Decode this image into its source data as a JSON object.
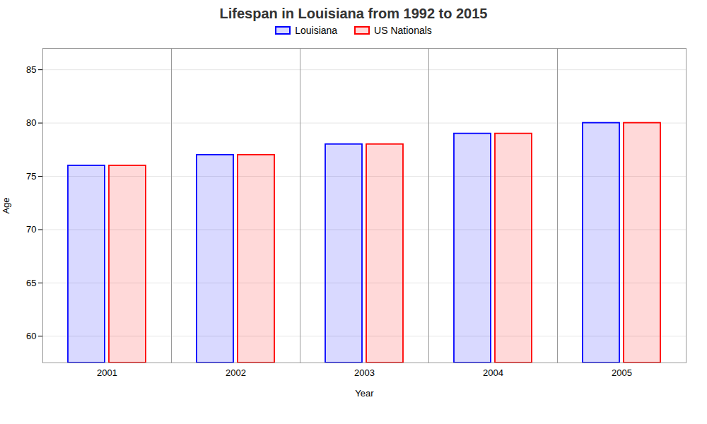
{
  "chart_data": {
    "type": "bar",
    "title": "Lifespan in Louisiana from 1992 to 2015",
    "categories": [
      "2001",
      "2002",
      "2003",
      "2004",
      "2005"
    ],
    "series": [
      {
        "name": "Louisiana",
        "color": "#0000ff",
        "values": [
          76,
          77,
          78,
          79,
          80
        ]
      },
      {
        "name": "US Nationals",
        "color": "#ff0000",
        "values": [
          76,
          77,
          78,
          79,
          80
        ]
      }
    ],
    "xlabel": "Year",
    "ylabel": "Age",
    "ylim": [
      57.5,
      87
    ],
    "yticks": [
      60,
      65,
      70,
      75,
      80,
      85
    ],
    "grid": true,
    "legend": "top"
  }
}
